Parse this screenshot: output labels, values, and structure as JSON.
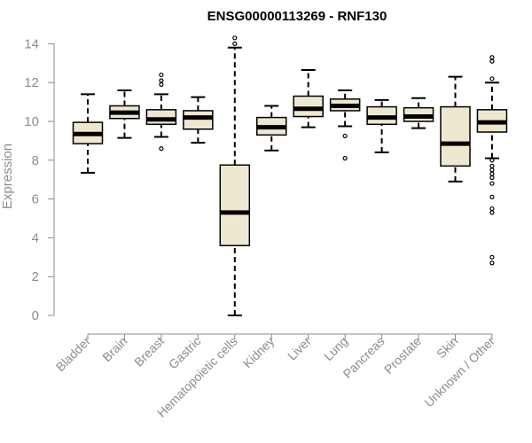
{
  "chart_data": {
    "type": "boxplot",
    "title": "ENSG00000113269 - RNF130",
    "xlabel": "",
    "ylabel": "Expression",
    "ylim": [
      0,
      14
    ],
    "yticks": [
      0,
      2,
      4,
      6,
      8,
      10,
      12,
      14
    ],
    "grid": false,
    "colors": {
      "box_fill": "#efe8d0",
      "box_stroke": "#000000",
      "axis": "#8c8c8c"
    },
    "categories": [
      "Bladder",
      "Brain",
      "Breast",
      "Gastric",
      "Hematopoietic cells",
      "Kidney",
      "Liver",
      "Lung",
      "Pancreas",
      "Prostate",
      "Skin",
      "Unknown / Other"
    ],
    "boxes": [
      {
        "category": "Bladder",
        "whisker_low": 7.35,
        "q1": 8.85,
        "median": 9.35,
        "q3": 9.95,
        "whisker_high": 11.4,
        "outliers": []
      },
      {
        "category": "Brain",
        "whisker_low": 9.15,
        "q1": 10.15,
        "median": 10.45,
        "q3": 10.8,
        "whisker_high": 11.6,
        "outliers": []
      },
      {
        "category": "Breast",
        "whisker_low": 9.2,
        "q1": 9.85,
        "median": 10.1,
        "q3": 10.6,
        "whisker_high": 11.4,
        "outliers": [
          8.6,
          11.9,
          12.1,
          12.4
        ]
      },
      {
        "category": "Gastric",
        "whisker_low": 8.9,
        "q1": 9.6,
        "median": 10.2,
        "q3": 10.55,
        "whisker_high": 11.25,
        "outliers": []
      },
      {
        "category": "Hematopoietic cells",
        "whisker_low": 0.0,
        "q1": 3.6,
        "median": 5.3,
        "q3": 7.75,
        "whisker_high": 13.8,
        "outliers": [
          14.0,
          14.3
        ]
      },
      {
        "category": "Kidney",
        "whisker_low": 8.5,
        "q1": 9.3,
        "median": 9.7,
        "q3": 10.2,
        "whisker_high": 10.8,
        "outliers": []
      },
      {
        "category": "Liver",
        "whisker_low": 9.7,
        "q1": 10.25,
        "median": 10.65,
        "q3": 11.3,
        "whisker_high": 12.65,
        "outliers": []
      },
      {
        "category": "Lung",
        "whisker_low": 9.75,
        "q1": 10.55,
        "median": 10.8,
        "q3": 11.15,
        "whisker_high": 11.6,
        "outliers": [
          9.25,
          8.1
        ]
      },
      {
        "category": "Pancreas",
        "whisker_low": 8.4,
        "q1": 9.85,
        "median": 10.2,
        "q3": 10.75,
        "whisker_high": 11.1,
        "outliers": []
      },
      {
        "category": "Prostate",
        "whisker_low": 9.65,
        "q1": 10.0,
        "median": 10.25,
        "q3": 10.7,
        "whisker_high": 11.2,
        "outliers": []
      },
      {
        "category": "Skin",
        "whisker_low": 6.9,
        "q1": 7.7,
        "median": 8.85,
        "q3": 10.75,
        "whisker_high": 12.3,
        "outliers": []
      },
      {
        "category": "Unknown / Other",
        "whisker_low": 8.1,
        "q1": 9.45,
        "median": 9.95,
        "q3": 10.6,
        "whisker_high": 12.0,
        "outliers": [
          2.7,
          3.0,
          5.3,
          5.5,
          6.1,
          6.8,
          7.1,
          7.3,
          7.5,
          7.7,
          8.0,
          12.2,
          13.1,
          13.3
        ]
      }
    ]
  }
}
